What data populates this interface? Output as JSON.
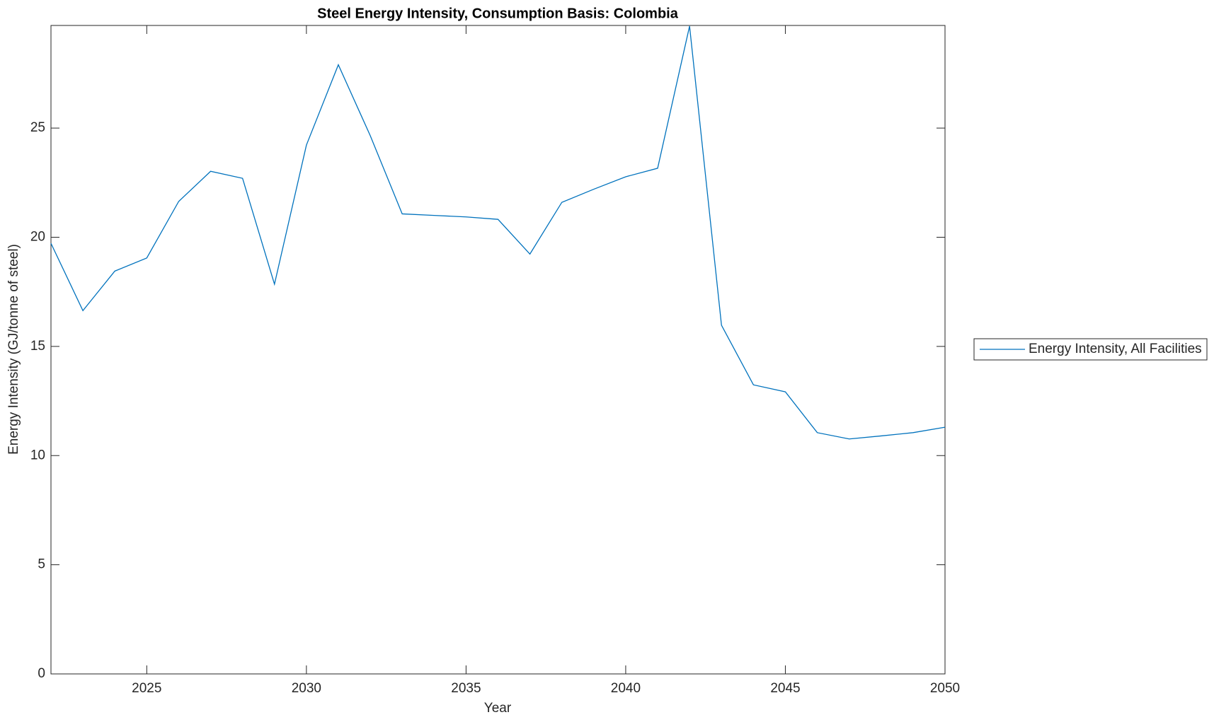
{
  "chart_data": {
    "type": "line",
    "title": "Steel Energy Intensity, Consumption Basis: Colombia",
    "x_label": "Year",
    "y_label": "Energy Intensity (GJ/tonne of steel)",
    "x": [
      2022,
      2023,
      2024,
      2025,
      2026,
      2027,
      2028,
      2029,
      2030,
      2031,
      2032,
      2033,
      2034,
      2035,
      2036,
      2037,
      2038,
      2039,
      2040,
      2041,
      2042,
      2043,
      2044,
      2045,
      2046,
      2047,
      2048,
      2049,
      2050
    ],
    "series": [
      {
        "name": "Energy Intensity, All Facilities",
        "color": "#0072bd",
        "values": [
          19.72,
          16.64,
          18.45,
          19.05,
          21.64,
          23.02,
          22.7,
          17.85,
          24.22,
          27.9,
          24.65,
          21.07,
          21.0,
          20.93,
          20.82,
          19.23,
          21.6,
          22.2,
          22.77,
          23.16,
          29.67,
          15.97,
          13.24,
          12.92,
          11.05,
          10.76,
          10.9,
          11.05,
          11.3
        ]
      }
    ],
    "xlim": [
      2022,
      2050
    ],
    "ylim": [
      0,
      29.7
    ],
    "xticks": [
      2025,
      2030,
      2035,
      2040,
      2045,
      2050
    ],
    "yticks": [
      0,
      5,
      10,
      15,
      20,
      25
    ],
    "legend": "outside-right"
  }
}
